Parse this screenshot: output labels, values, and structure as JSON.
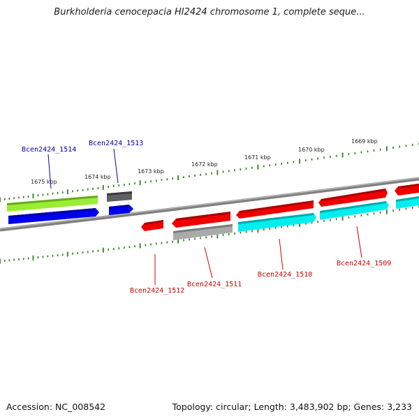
{
  "title": "Burkholderia cenocepacia HI2424 chromosome 1, complete seque...",
  "footer": {
    "accession": "Accession: NC_008542",
    "topology": "Topology: circular; Length: 3,483,902 bp; Genes: 3,233"
  },
  "scale_labels": [
    "1675 kbp",
    "1674 kbp",
    "1673 kbp",
    "1672 kbp",
    "1671 kbp",
    "1670 kbp",
    "1669 kbp"
  ],
  "gene_labels": [
    "Bcen2424_1514",
    "Bcen2424_1513",
    "Bcen2424_1512",
    "Bcen2424_1511",
    "Bcen2424_1510",
    "Bcen2424_1509"
  ],
  "colors": {
    "backbone": "#808080",
    "ticks": "#2e7d1e",
    "label_blue": "#0000aa",
    "label_red": "#cc0000",
    "blue": "#0000ee",
    "lime": "#99ee33",
    "darkgray": "#606060",
    "red": "#ee0000",
    "lightgray": "#aaaaaa",
    "cyan": "#00eeee"
  }
}
